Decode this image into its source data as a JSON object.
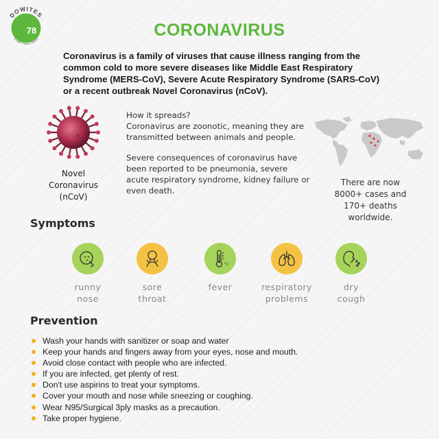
{
  "logo": {
    "brand": "DOWITES",
    "number": "78",
    "tagline": "Dowitian Theatre Collective",
    "color": "#5bb83c"
  },
  "title": "CORONAVIRUS",
  "intro": "Coronavirus is a family of viruses that cause illness ranging from the common cold to more severe diseases like Middle East Respiratory Syndrome (MERS-CoV), Severe Acute Respiratory Syndrome (SARS-CoV) or a recent outbreak Novel Coronavirus (nCoV).",
  "virus": {
    "label_line1": "Novel",
    "label_line2": "Coronavirus",
    "label_line3": "(nCoV)"
  },
  "spread": {
    "heading": "How it spreads?",
    "para1": "Coronavirus are zoonotic, meaning they are transmitted between animals and people.",
    "para2": "Severe consequences of coronavirus have been reported to be pneumonia, severe acute respiratory syndrome, kidney failure or even death."
  },
  "stats": {
    "line1": "There are now",
    "line2": "8000+ cases and",
    "line3": "170+ deaths",
    "line4": "worldwide."
  },
  "symptoms": {
    "heading": "Symptoms",
    "items": [
      {
        "line1": "runny",
        "line2": "nose",
        "icon": "runny-nose-icon",
        "color": "#a6d35a"
      },
      {
        "line1": "sore",
        "line2": "throat",
        "icon": "sore-throat-icon",
        "color": "#f4c243"
      },
      {
        "line1": "fever",
        "line2": "",
        "icon": "thermometer-icon",
        "color": "#a6d35a"
      },
      {
        "line1": "respiratory",
        "line2": "problems",
        "icon": "lungs-icon",
        "color": "#f4c243"
      },
      {
        "line1": "dry",
        "line2": "cough",
        "icon": "cough-icon",
        "color": "#a6d35a"
      }
    ]
  },
  "prevention": {
    "heading": "Prevention",
    "bullet_color": "#f2b01e",
    "items": [
      "Wash your hands with sanitizer or soap and water",
      "Keep your hands and fingers away from your eyes, nose and mouth.",
      "Avoid close contact with people who are infected.",
      "If you are infected, get plenty of rest.",
      "Don't use aspirins to treat your symptoms.",
      "Cover your mouth and nose while sneezing or coughing.",
      "Wear N95/Surgical 3ply masks as a precaution.",
      "Take proper hygiene."
    ]
  }
}
